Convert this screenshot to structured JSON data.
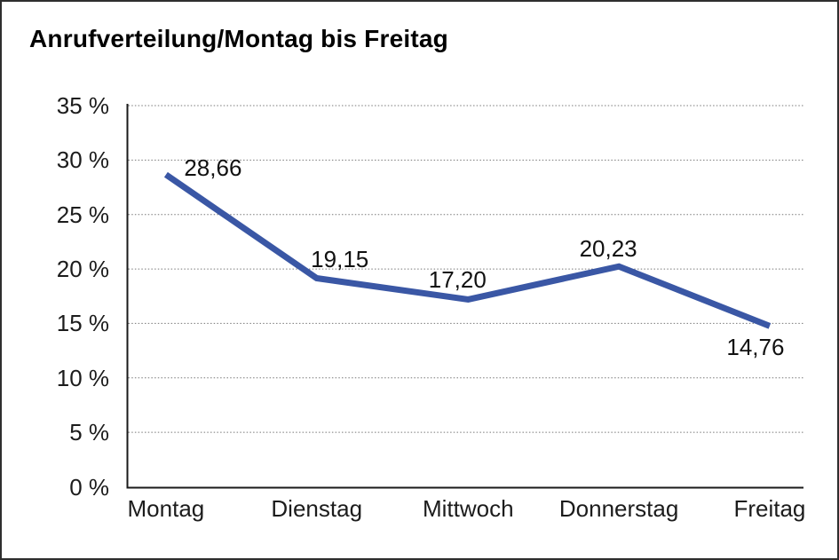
{
  "title": "Anrufverteilung/Montag bis Freitag",
  "colors": {
    "line": "#3A57A5",
    "grid": "#787878",
    "axis": "#1a1a1a",
    "text": "#1c1c1c",
    "frame_border": "#2e2e2e",
    "background": "#ffffff"
  },
  "chart_data": {
    "type": "line",
    "title": "Anrufverteilung/Montag bis Freitag",
    "categories": [
      "Montag",
      "Dienstag",
      "Mittwoch",
      "Donnerstag",
      "Freitag"
    ],
    "values": [
      28.66,
      19.15,
      17.2,
      20.23,
      14.76
    ],
    "value_labels": [
      "28,66",
      "19,15",
      "17,20",
      "20,23",
      "14,76"
    ],
    "ytick_values": [
      0,
      5,
      10,
      15,
      20,
      25,
      30,
      35
    ],
    "ytick_labels": [
      "0 %",
      "5 %",
      "10 %",
      "15 %",
      "20 %",
      "25 %",
      "30 %",
      "35 %"
    ],
    "ylim": [
      0,
      35
    ],
    "ytick_step": 5,
    "xlabel": "",
    "ylabel": "",
    "grid": "horizontal-dotted",
    "legend": "none"
  }
}
